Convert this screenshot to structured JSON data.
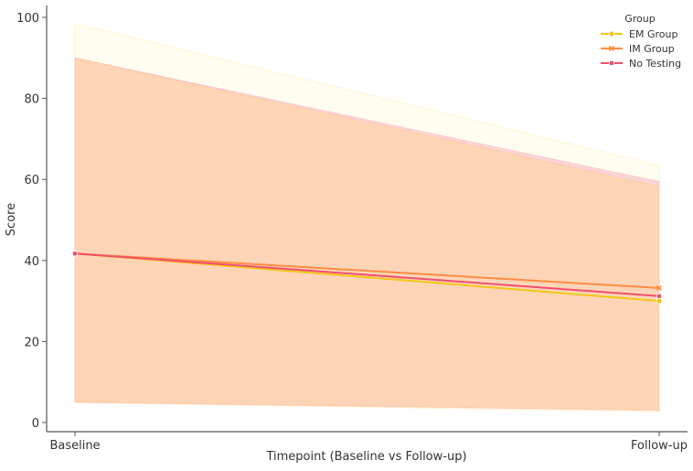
{
  "chart_data": {
    "type": "line",
    "title": "",
    "xlabel": "Timepoint (Baseline vs Follow-up)",
    "ylabel": "Score",
    "categories": [
      "Baseline",
      "Follow-up"
    ],
    "ylim": [
      -2,
      103
    ],
    "yticks": [
      0,
      20,
      40,
      60,
      80,
      100
    ],
    "grid": false,
    "legend": {
      "title": "Group",
      "placement": "top-right"
    },
    "series": [
      {
        "name": "EM Group",
        "color": "#f5c518",
        "marker": "circle",
        "values": [
          41.7,
          30.0
        ],
        "band_upper": [
          98.5,
          63.5
        ],
        "band_lower": [
          5.0,
          2.6
        ]
      },
      {
        "name": "IM Group",
        "color": "#ff8c42",
        "marker": "x",
        "values": [
          41.7,
          33.2
        ],
        "band_upper": [
          90.0,
          58.3
        ],
        "band_lower": [
          5.0,
          3.0
        ]
      },
      {
        "name": "No Testing",
        "color": "#f0506e",
        "marker": "square",
        "values": [
          41.7,
          31.2
        ],
        "band_upper": [
          90.0,
          59.5
        ],
        "band_lower": [
          5.0,
          3.0
        ]
      }
    ]
  }
}
